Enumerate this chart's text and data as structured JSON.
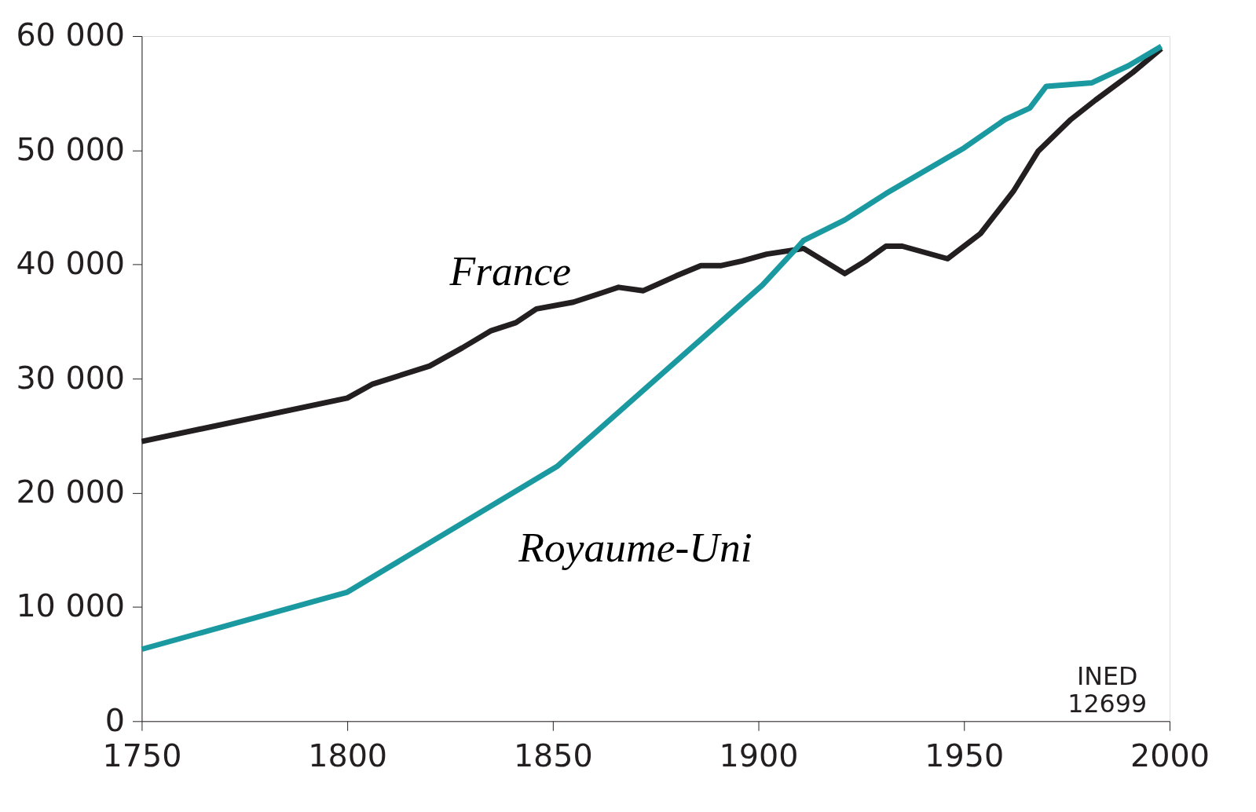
{
  "chart_data": {
    "type": "line",
    "x": [
      1750,
      1800,
      1806,
      1820,
      1828,
      1835,
      1841,
      1846,
      1855,
      1861,
      1866,
      1872,
      1880,
      1886,
      1891,
      1896,
      1902,
      1911,
      1921,
      1926,
      1931,
      1935,
      1946,
      1954,
      1962,
      1968,
      1976,
      1982,
      1991,
      1998
    ],
    "series": [
      {
        "color": "#231f20",
        "values": [
          24500,
          28300,
          29500,
          31100,
          32700,
          34200,
          34900,
          36100,
          36700,
          37400,
          38000,
          37700,
          39000,
          39900,
          39900,
          40300,
          40900,
          41400,
          39200,
          40300,
          41600,
          41600,
          40500,
          42700,
          46400,
          49900,
          52700,
          54400,
          56800,
          58900
        ]
      },
      {
        "color": "#1a9aa0",
        "x": [
          1750,
          1800,
          1851,
          1901,
          1911,
          1921,
          1931,
          1950,
          1960,
          1966,
          1970,
          1981,
          1990,
          1998
        ],
        "values": [
          6300,
          11300,
          22300,
          38200,
          42100,
          43900,
          46200,
          50200,
          52700,
          53700,
          55600,
          55900,
          57400,
          59100
        ]
      }
    ],
    "xlim": [
      1750,
      2000
    ],
    "xticks": [
      1750,
      1800,
      1850,
      1900,
      1950,
      2000
    ],
    "ylim": [
      0,
      60000
    ],
    "yticks": [
      0,
      {
        "value": 10000,
        "label": "10 000"
      },
      {
        "value": 20000,
        "label": "20 000"
      },
      {
        "value": 30000,
        "label": "30 000"
      },
      {
        "value": 40000,
        "label": "40 000"
      },
      {
        "value": 50000,
        "label": "50 000"
      },
      {
        "value": 60000,
        "label": "60 000"
      }
    ],
    "grid": false,
    "line_style": "solid",
    "annotations": [
      {
        "text": "France",
        "x": 1862,
        "y": 37400
      },
      {
        "text": "Royaume-Uni",
        "x": 1836,
        "y": 19000
      },
      "INED\n12699"
    ]
  }
}
